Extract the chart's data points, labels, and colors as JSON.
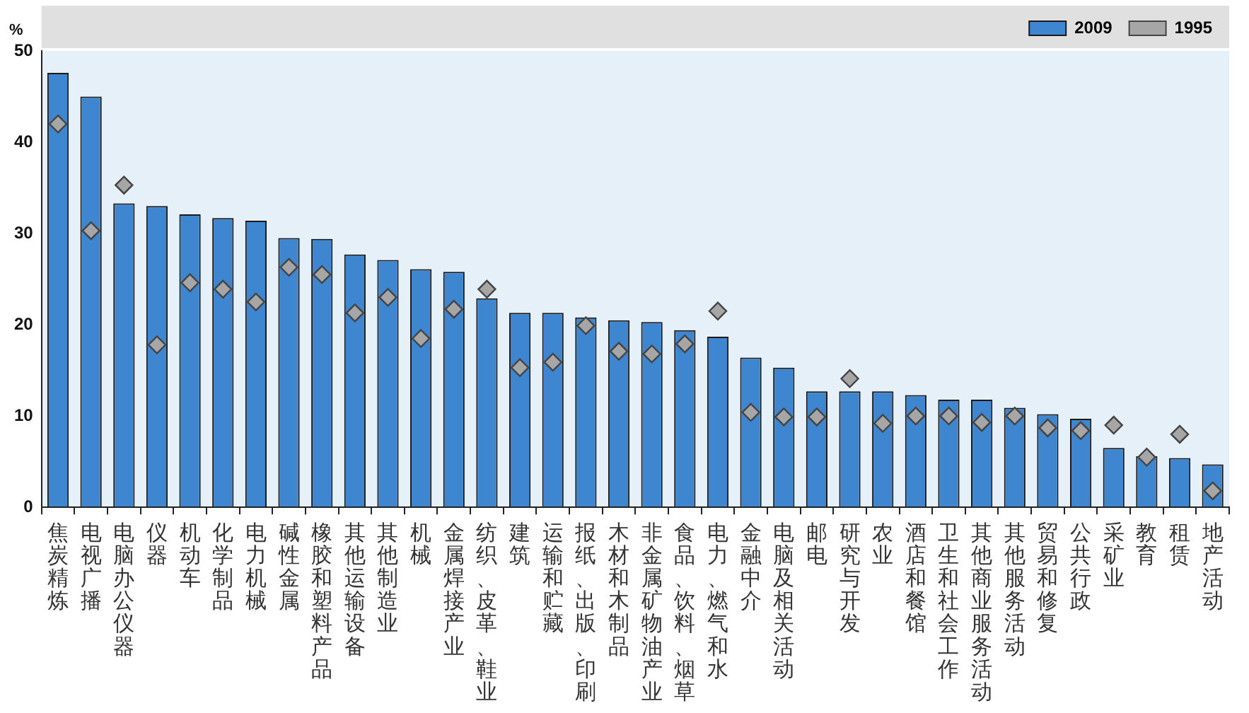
{
  "chart_data": {
    "type": "bar",
    "ylabel": "%",
    "legend": "top",
    "grid": false,
    "categories": [
      "焦炭精炼",
      "电视广播",
      "电脑办公仪器",
      "仪器",
      "机动车",
      "化学制品",
      "电力机械",
      "碱性金属",
      "橡胶和塑料产品",
      "其他运输设备",
      "其他制造业",
      "机械",
      "金属焊接产业",
      "纺织、皮革、鞋业",
      "建筑",
      "运输和贮藏",
      "报纸、出版、印刷",
      "木材和木制品",
      "非金属矿物油产业",
      "食品、饮料、烟草",
      "电力、燃气和水",
      "金融中介",
      "电脑及相关活动",
      "邮电",
      "研究与开发",
      "农业",
      "酒店和餐馆",
      "卫生和社会工作",
      "其他商业服务活动",
      "其他服务活动",
      "贸易和修复",
      "公共行政",
      "采矿业",
      "教育",
      "租赁",
      "地产活动"
    ],
    "ylim": [
      0,
      50
    ],
    "yticks": [
      0,
      10,
      20,
      30,
      40,
      50
    ],
    "series": [
      {
        "name": "2009",
        "color": "#3f86d0",
        "values": [
          47.6,
          45.0,
          33.3,
          33.0,
          32.1,
          31.7,
          31.4,
          29.5,
          29.4,
          27.7,
          27.1,
          26.1,
          25.8,
          22.9,
          21.3,
          21.3,
          20.8,
          20.5,
          20.3,
          19.4,
          18.7,
          16.4,
          15.3,
          12.7,
          12.7,
          12.7,
          12.3,
          11.8,
          11.8,
          10.9,
          10.2,
          9.7,
          6.5,
          5.6,
          5.4,
          4.7
        ]
      },
      {
        "name": "1995",
        "type": "scatter",
        "marker": "diamond",
        "color": "#a6a6a6",
        "values": [
          42.0,
          30.3,
          35.3,
          17.8,
          24.6,
          23.9,
          22.5,
          26.3,
          25.5,
          21.3,
          23.0,
          18.5,
          21.7,
          23.9,
          15.3,
          15.9,
          19.9,
          17.1,
          16.8,
          17.9,
          21.5,
          10.4,
          9.9,
          9.9,
          14.1,
          9.2,
          10.0,
          10.0,
          9.3,
          10.0,
          8.7,
          8.4,
          9.0,
          5.5,
          8.0,
          1.8
        ]
      }
    ]
  }
}
